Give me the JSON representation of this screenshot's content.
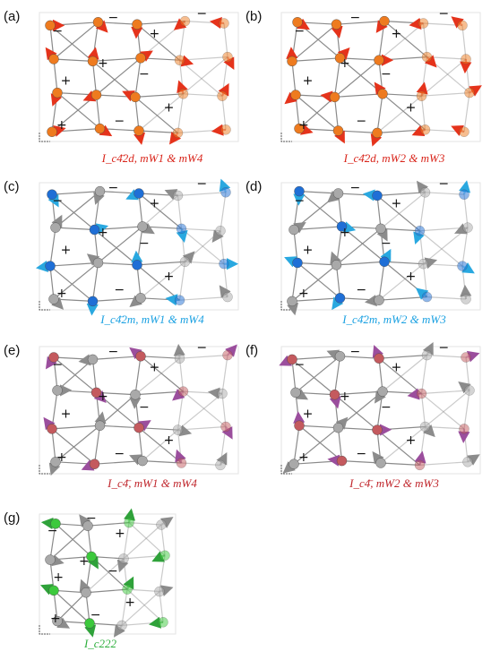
{
  "panels": [
    {
      "id": "a",
      "label": "(a)",
      "caption": "I_c4̄2d, mW1 & mW4",
      "color": "#d9261c",
      "atom": "#ee7b1f",
      "arrow": "#e5331b",
      "atom2": "#ee7b1f",
      "signs": "-+"
    },
    {
      "id": "b",
      "label": "(b)",
      "caption": "I_c4̄2d, mW2 & mW3",
      "color": "#d9261c",
      "atom": "#ee7b1f",
      "arrow": "#e5331b",
      "atom2": "#ee7b1f",
      "signs": "-+"
    },
    {
      "id": "c",
      "label": "(c)",
      "caption": "I_c4̄2m, mW1 & mW4",
      "color": "#1ba1e2",
      "atom": "#1f6fd6",
      "arrow": "#29a8e0",
      "atom2": "#a9a9a9",
      "signs": "-+"
    },
    {
      "id": "d",
      "label": "(d)",
      "caption": "I_c4̄2m, mW2 & mW3",
      "color": "#1ba1e2",
      "atom": "#1f6fd6",
      "arrow": "#29a8e0",
      "atom2": "#a9a9a9",
      "signs": "-+"
    },
    {
      "id": "e",
      "label": "(e)",
      "caption": "I_c4̄, mW1 & mW4",
      "color": "#c0262c",
      "atom": "#c45a5e",
      "arrow": "#9b4e9d",
      "atom2": "#a9a9a9",
      "signs": "-+"
    },
    {
      "id": "f",
      "label": "(f)",
      "caption": "I_c4̄, mW2 & mW3",
      "color": "#c0262c",
      "atom": "#c45a5e",
      "arrow": "#9b4e9d",
      "atom2": "#a9a9a9",
      "signs": "-+"
    },
    {
      "id": "g",
      "label": "(g)",
      "caption": "I_c222",
      "color": "#2cae3c",
      "atom": "#3cc93c",
      "arrow": "#2fa23a",
      "atom2": "#a9a9a9",
      "signs": "-+"
    }
  ],
  "minus_sign": "−",
  "plus_sign": "+"
}
